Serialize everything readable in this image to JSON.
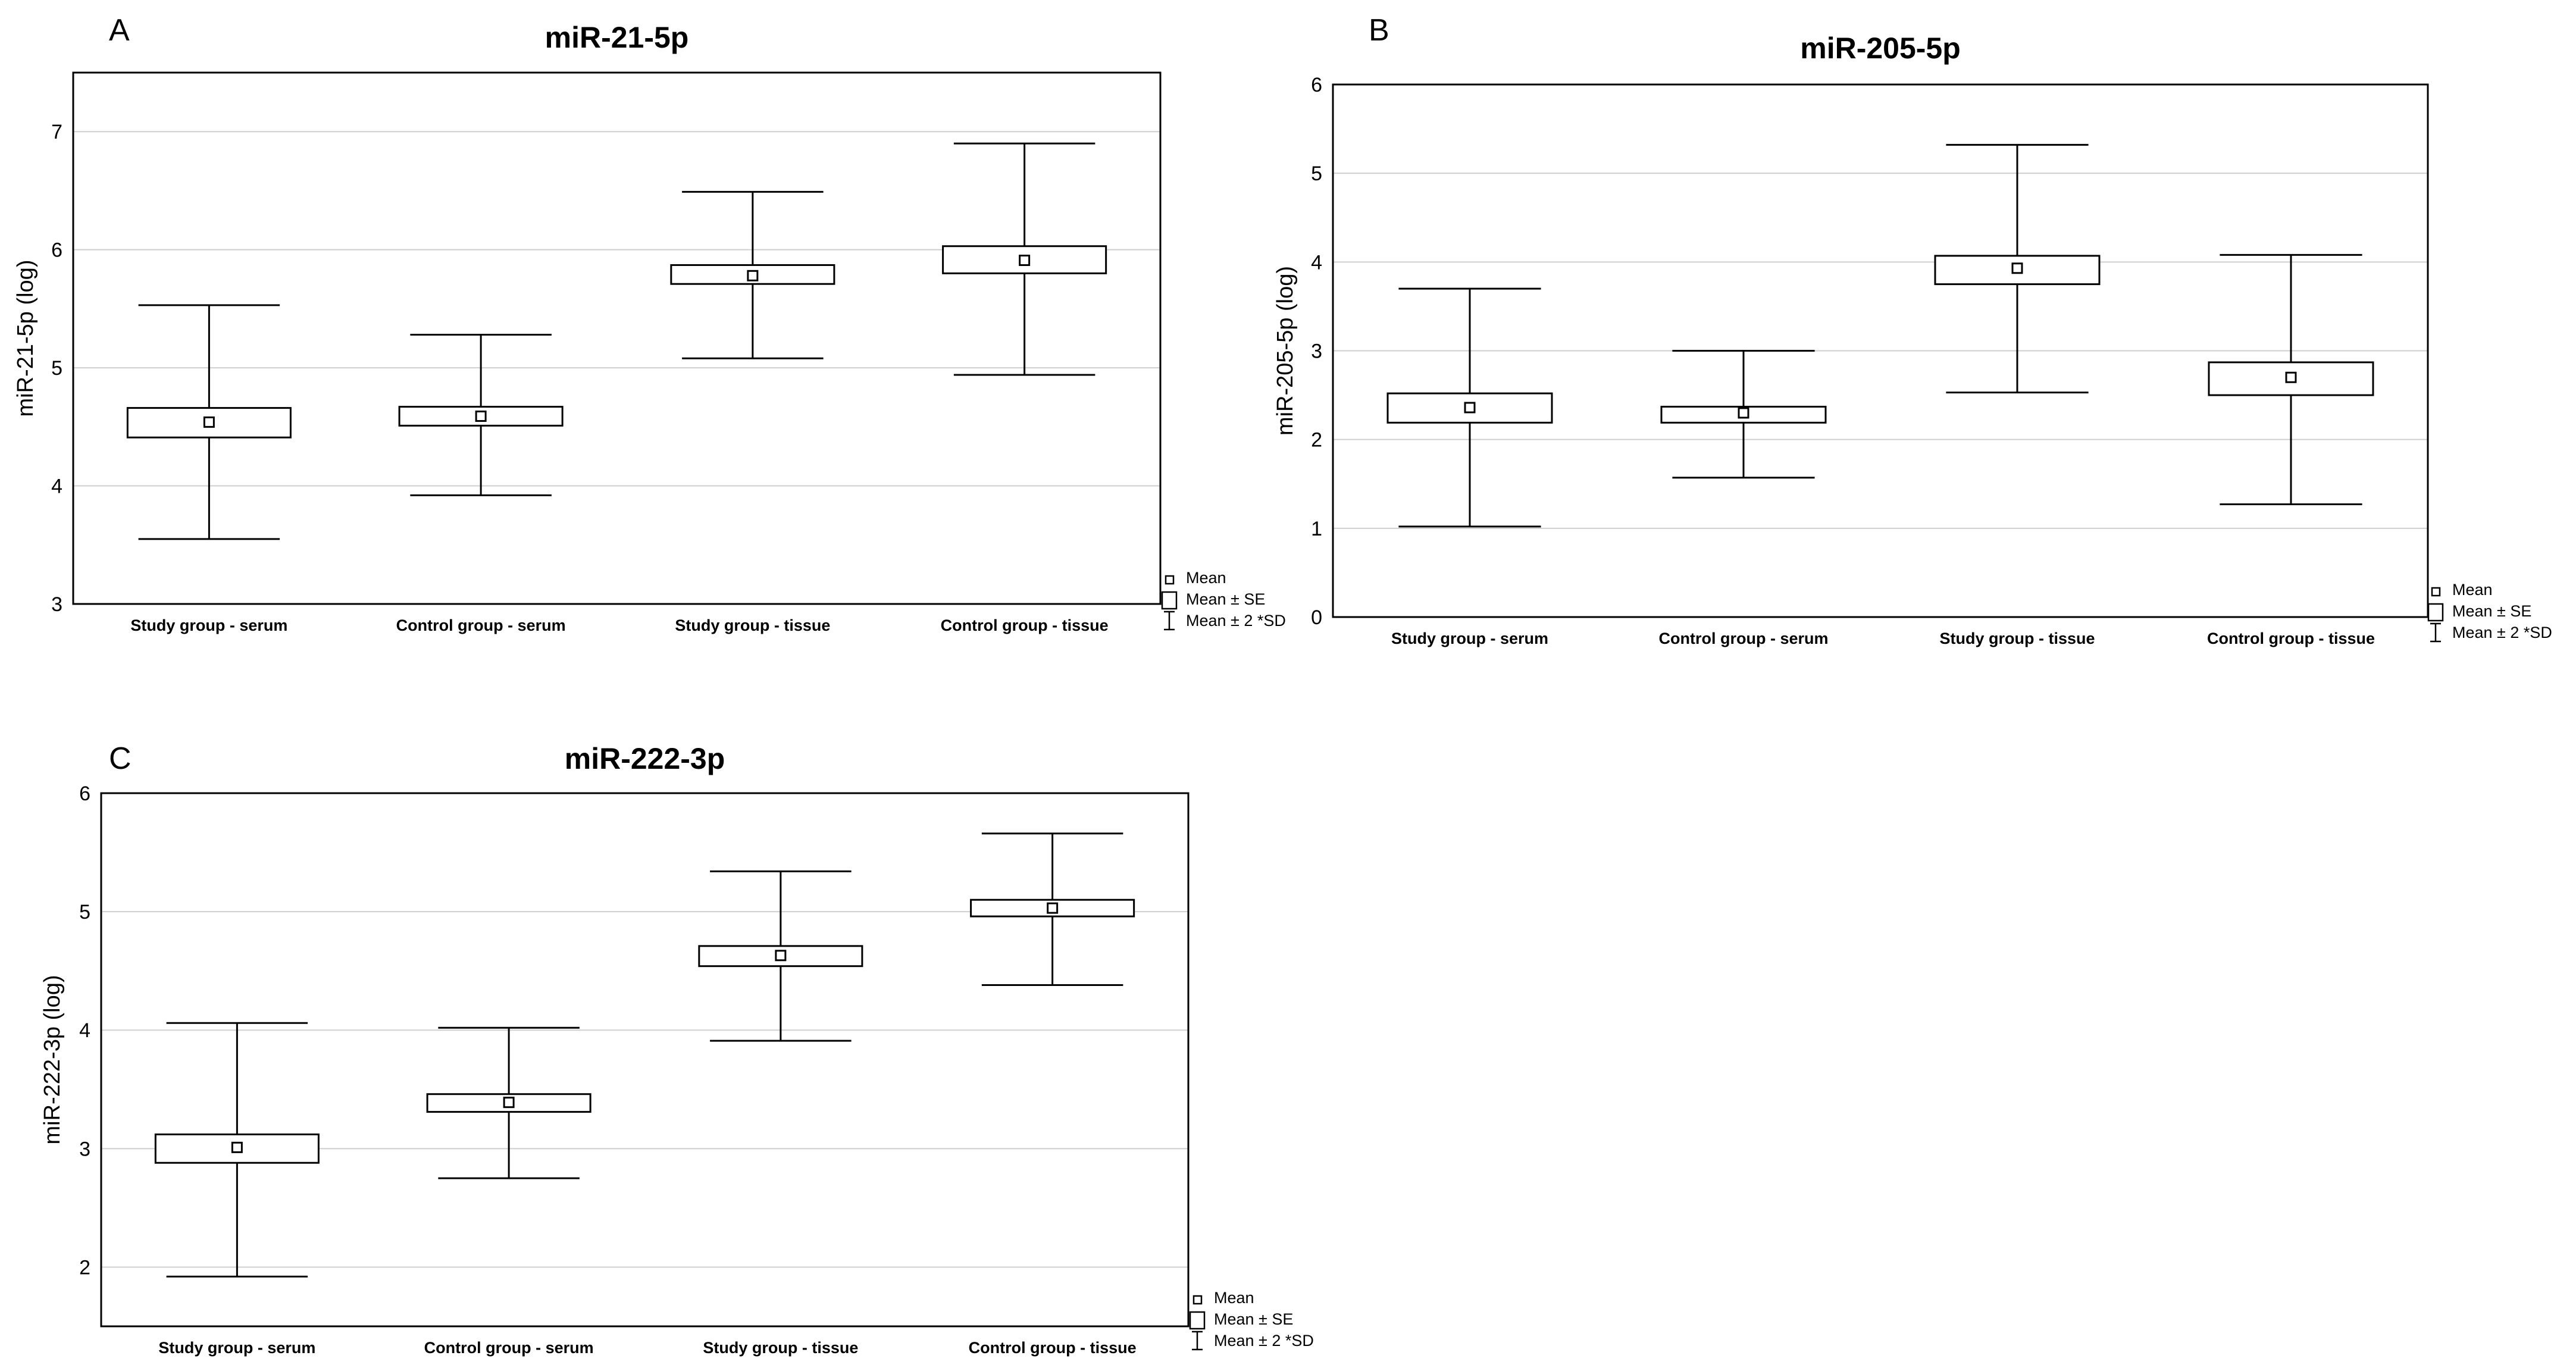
{
  "chart_data": [
    {
      "panel": "A",
      "type": "box",
      "title": "miR-21-5p",
      "ylabel": "miR-21-5p (log)",
      "xlabel": "",
      "ylim": [
        3,
        7.5
      ],
      "yticks": [
        "3",
        "4",
        "5",
        "6",
        "7"
      ],
      "grid": true,
      "categories": [
        "Study group - serum",
        "Control group - serum",
        "Study group - tissue",
        "Control group - tissue"
      ],
      "series": [
        {
          "category": "Study group - serum",
          "mean": 4.54,
          "se_low": 4.41,
          "se_high": 4.66,
          "sd2_low": 3.55,
          "sd2_high": 5.53
        },
        {
          "category": "Control group - serum",
          "mean": 4.59,
          "se_low": 4.51,
          "se_high": 4.67,
          "sd2_low": 3.92,
          "sd2_high": 5.28
        },
        {
          "category": "Study group - tissue",
          "mean": 5.78,
          "se_low": 5.71,
          "se_high": 5.87,
          "sd2_low": 5.08,
          "sd2_high": 6.49
        },
        {
          "category": "Control group - tissue",
          "mean": 5.91,
          "se_low": 5.8,
          "se_high": 6.03,
          "sd2_low": 4.94,
          "sd2_high": 6.9
        }
      ],
      "legend": {
        "mean": "Mean",
        "se": "Mean ± SE",
        "sd": "Mean ± 2 *SD"
      }
    },
    {
      "panel": "B",
      "type": "box",
      "title": "miR-205-5p",
      "ylabel": "miR-205-5p (log)",
      "xlabel": "",
      "ylim": [
        0,
        6
      ],
      "yticks": [
        "0",
        "1",
        "2",
        "3",
        "4",
        "5",
        "6"
      ],
      "grid": true,
      "categories": [
        "Study group - serum",
        "Control group - serum",
        "Study group - tissue",
        "Control group - tissue"
      ],
      "series": [
        {
          "category": "Study group - serum",
          "mean": 2.36,
          "se_low": 2.19,
          "se_high": 2.52,
          "sd2_low": 1.02,
          "sd2_high": 3.7
        },
        {
          "category": "Control group - serum",
          "mean": 2.3,
          "se_low": 2.19,
          "se_high": 2.37,
          "sd2_low": 1.57,
          "sd2_high": 3.0
        },
        {
          "category": "Study group - tissue",
          "mean": 3.93,
          "se_low": 3.75,
          "se_high": 4.07,
          "sd2_low": 2.53,
          "sd2_high": 5.32
        },
        {
          "category": "Control group - tissue",
          "mean": 2.7,
          "se_low": 2.5,
          "se_high": 2.87,
          "sd2_low": 1.27,
          "sd2_high": 4.08
        }
      ],
      "legend": {
        "mean": "Mean",
        "se": "Mean ± SE",
        "sd": "Mean ± 2 *SD"
      }
    },
    {
      "panel": "C",
      "type": "box",
      "title": "miR-222-3p",
      "ylabel": "miR-222-3p (log)",
      "xlabel": "",
      "ylim": [
        1.5,
        6
      ],
      "yticks": [
        "2",
        "3",
        "4",
        "5",
        "6"
      ],
      "grid": true,
      "categories": [
        "Study group - serum",
        "Control group - serum",
        "Study group - tissue",
        "Control group - tissue"
      ],
      "series": [
        {
          "category": "Study group - serum",
          "mean": 3.01,
          "se_low": 2.88,
          "se_high": 3.12,
          "sd2_low": 1.92,
          "sd2_high": 4.06
        },
        {
          "category": "Control group - serum",
          "mean": 3.39,
          "se_low": 3.31,
          "se_high": 3.46,
          "sd2_low": 2.75,
          "sd2_high": 4.02
        },
        {
          "category": "Study group - tissue",
          "mean": 4.63,
          "se_low": 4.54,
          "se_high": 4.71,
          "sd2_low": 3.91,
          "sd2_high": 5.34
        },
        {
          "category": "Control group - tissue",
          "mean": 5.03,
          "se_low": 4.96,
          "se_high": 5.1,
          "sd2_low": 4.38,
          "sd2_high": 5.66
        }
      ],
      "legend": {
        "mean": "Mean",
        "se": "Mean ± SE",
        "sd": "Mean ± 2 *SD"
      }
    }
  ]
}
